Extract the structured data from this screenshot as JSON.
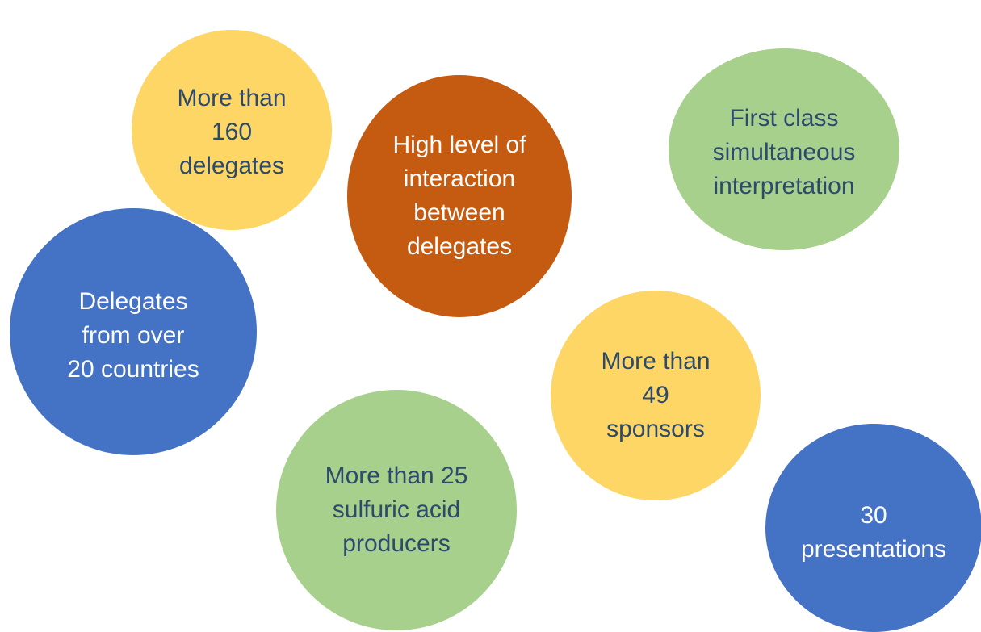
{
  "colors": {
    "yellow": "#FDD666",
    "orange": "#C55A11",
    "green": "#A8D08D",
    "blue": "#4472C4",
    "text_dark": "#2C4A6B",
    "text_light": "#FFFFFF"
  },
  "bubbles": [
    {
      "id": "b-delegates-160",
      "color": "yellow",
      "text_color": "text_dark",
      "lines": [
        "More than",
        "160",
        "delegates"
      ]
    },
    {
      "id": "b-interaction",
      "color": "orange",
      "text_color": "text_light",
      "lines": [
        "High level of",
        "interaction",
        "between",
        "delegates"
      ]
    },
    {
      "id": "b-interpretation",
      "color": "green",
      "text_color": "text_dark",
      "lines": [
        "First class",
        "simultaneous",
        "interpretation"
      ]
    },
    {
      "id": "b-countries",
      "color": "blue",
      "text_color": "text_light",
      "lines": [
        "Delegates",
        "from over",
        "20 countries"
      ]
    },
    {
      "id": "b-sponsors",
      "color": "yellow",
      "text_color": "text_dark",
      "lines": [
        "More than",
        "49",
        "sponsors"
      ]
    },
    {
      "id": "b-producers",
      "color": "green",
      "text_color": "text_dark",
      "lines": [
        "More than 25",
        "sulfuric acid",
        "producers"
      ]
    },
    {
      "id": "b-presentations",
      "color": "blue",
      "text_color": "text_light",
      "lines": [
        "30",
        "presentations"
      ]
    }
  ]
}
